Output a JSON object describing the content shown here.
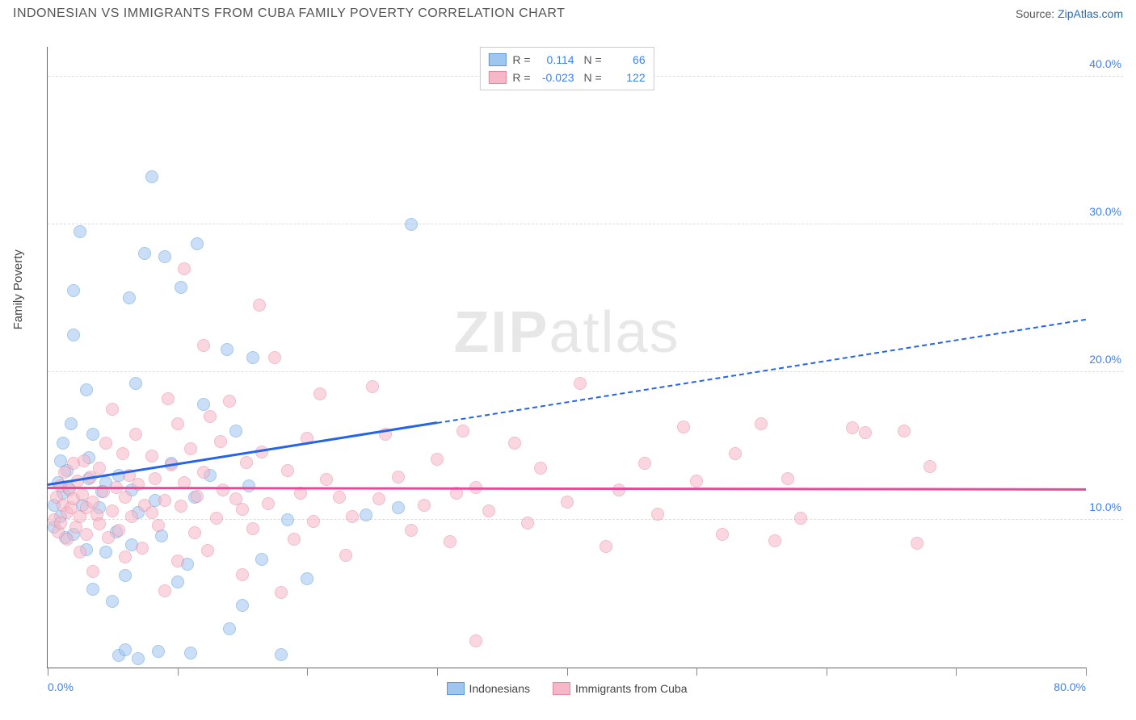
{
  "title": "INDONESIAN VS IMMIGRANTS FROM CUBA FAMILY POVERTY CORRELATION CHART",
  "source_label": "Source:",
  "source_name": "ZipAtlas.com",
  "watermark": {
    "bold": "ZIP",
    "rest": "atlas"
  },
  "chart": {
    "type": "scatter",
    "ylabel": "Family Poverty",
    "xlim": [
      0,
      80
    ],
    "ylim": [
      0,
      42
    ],
    "xtick_positions": [
      0,
      10,
      20,
      30,
      40,
      50,
      60,
      70,
      80
    ],
    "xtick_labels": {
      "0": "0.0%",
      "80": "80.0%"
    },
    "ytick_positions": [
      10,
      20,
      30,
      40
    ],
    "ytick_labels": {
      "10": "10.0%",
      "20": "20.0%",
      "30": "30.0%",
      "40": "40.0%"
    },
    "grid_color": "#dddddd",
    "axis_color": "#666666",
    "tick_label_color": "#3b82f6",
    "background_color": "#ffffff",
    "marker_radius": 7,
    "marker_opacity": 0.55,
    "series": [
      {
        "name": "Indonesians",
        "fill": "#9fc5f1",
        "stroke": "#5b9bd5",
        "line_color": "#2563eb",
        "r_value": "0.114",
        "n_value": "66",
        "trend": {
          "x1": 0,
          "y1": 12.3,
          "x2_solid": 30,
          "y2_solid": 16.5,
          "x2": 80,
          "y2": 23.5
        },
        "points": [
          [
            0.5,
            9.5
          ],
          [
            0.5,
            11
          ],
          [
            0.8,
            12.5
          ],
          [
            1,
            10.2
          ],
          [
            1,
            14
          ],
          [
            1.2,
            11.8
          ],
          [
            1.2,
            15.2
          ],
          [
            1.4,
            8.8
          ],
          [
            1.5,
            13.3
          ],
          [
            1.6,
            12.1
          ],
          [
            1.8,
            16.5
          ],
          [
            2,
            9
          ],
          [
            2,
            22.5
          ],
          [
            2,
            25.5
          ],
          [
            2.5,
            29.5
          ],
          [
            2.7,
            11
          ],
          [
            3,
            8
          ],
          [
            3,
            18.8
          ],
          [
            3.2,
            12.8
          ],
          [
            3.2,
            14.2
          ],
          [
            3.5,
            5.3
          ],
          [
            3.5,
            15.8
          ],
          [
            4,
            10.8
          ],
          [
            4.2,
            11.9
          ],
          [
            4.5,
            7.8
          ],
          [
            4.5,
            12.5
          ],
          [
            5,
            4.5
          ],
          [
            5.3,
            9.2
          ],
          [
            5.5,
            0.8
          ],
          [
            5.5,
            13
          ],
          [
            6,
            1.2
          ],
          [
            6,
            6.2
          ],
          [
            6.3,
            25
          ],
          [
            6.5,
            8.3
          ],
          [
            6.5,
            12
          ],
          [
            6.8,
            19.2
          ],
          [
            7,
            0.6
          ],
          [
            7,
            10.5
          ],
          [
            7.5,
            28
          ],
          [
            8,
            33.2
          ],
          [
            8.3,
            11.3
          ],
          [
            8.5,
            1.1
          ],
          [
            8.8,
            8.9
          ],
          [
            9,
            27.8
          ],
          [
            9.5,
            13.8
          ],
          [
            10,
            5.8
          ],
          [
            10.3,
            25.7
          ],
          [
            10.8,
            7
          ],
          [
            11,
            1
          ],
          [
            11.3,
            11.5
          ],
          [
            11.5,
            28.7
          ],
          [
            12,
            17.8
          ],
          [
            12.5,
            13
          ],
          [
            13.8,
            21.5
          ],
          [
            14,
            2.6
          ],
          [
            14.5,
            16
          ],
          [
            15,
            4.2
          ],
          [
            15.5,
            12.3
          ],
          [
            15.8,
            21
          ],
          [
            16.5,
            7.3
          ],
          [
            18,
            0.9
          ],
          [
            18.5,
            10
          ],
          [
            20,
            6
          ],
          [
            24.5,
            10.3
          ],
          [
            27,
            10.8
          ],
          [
            28,
            30
          ]
        ]
      },
      {
        "name": "Immigrants from Cuba",
        "fill": "#f6b8c8",
        "stroke": "#e8859f",
        "line_color": "#ec4899",
        "r_value": "-0.023",
        "n_value": "122",
        "trend": {
          "x1": 0,
          "y1": 12.1,
          "x2_solid": 80,
          "y2_solid": 12.0,
          "x2": 80,
          "y2": 12.0
        },
        "points": [
          [
            0.5,
            10
          ],
          [
            0.7,
            11.5
          ],
          [
            0.8,
            9.2
          ],
          [
            1,
            12.3
          ],
          [
            1,
            9.8
          ],
          [
            1.2,
            11
          ],
          [
            1.3,
            13.2
          ],
          [
            1.5,
            8.7
          ],
          [
            1.5,
            10.5
          ],
          [
            1.7,
            12
          ],
          [
            1.8,
            10.8
          ],
          [
            2,
            11.4
          ],
          [
            2,
            13.8
          ],
          [
            2.2,
            9.5
          ],
          [
            2.3,
            12.6
          ],
          [
            2.5,
            10.2
          ],
          [
            2.5,
            7.8
          ],
          [
            2.7,
            11.7
          ],
          [
            2.8,
            14
          ],
          [
            3,
            9
          ],
          [
            3,
            10.8
          ],
          [
            3.3,
            12.9
          ],
          [
            3.5,
            6.5
          ],
          [
            3.5,
            11.2
          ],
          [
            3.8,
            10.3
          ],
          [
            4,
            13.5
          ],
          [
            4,
            9.7
          ],
          [
            4.3,
            11.9
          ],
          [
            4.5,
            15.2
          ],
          [
            4.7,
            8.8
          ],
          [
            5,
            10.6
          ],
          [
            5,
            17.5
          ],
          [
            5.3,
            12.2
          ],
          [
            5.5,
            9.3
          ],
          [
            5.8,
            14.5
          ],
          [
            6,
            11.5
          ],
          [
            6,
            7.5
          ],
          [
            6.3,
            13
          ],
          [
            6.5,
            10.2
          ],
          [
            6.8,
            15.8
          ],
          [
            7,
            12.4
          ],
          [
            7.3,
            8.1
          ],
          [
            7.5,
            11
          ],
          [
            8,
            14.3
          ],
          [
            8,
            10.5
          ],
          [
            8.3,
            12.8
          ],
          [
            8.5,
            9.6
          ],
          [
            9,
            5.2
          ],
          [
            9,
            11.3
          ],
          [
            9.3,
            18.2
          ],
          [
            9.5,
            13.7
          ],
          [
            10,
            7.2
          ],
          [
            10,
            16.5
          ],
          [
            10.3,
            10.9
          ],
          [
            10.5,
            27
          ],
          [
            10.5,
            12.5
          ],
          [
            11,
            14.8
          ],
          [
            11.3,
            9.1
          ],
          [
            11.5,
            11.6
          ],
          [
            12,
            21.8
          ],
          [
            12,
            13.2
          ],
          [
            12.3,
            7.9
          ],
          [
            12.5,
            17
          ],
          [
            13,
            10.1
          ],
          [
            13.3,
            15.3
          ],
          [
            13.5,
            12
          ],
          [
            14,
            18
          ],
          [
            14.5,
            11.4
          ],
          [
            15,
            6.3
          ],
          [
            15,
            10.7
          ],
          [
            15.3,
            13.9
          ],
          [
            15.8,
            9.4
          ],
          [
            16.3,
            24.5
          ],
          [
            16.5,
            14.6
          ],
          [
            17,
            11.1
          ],
          [
            17.5,
            21
          ],
          [
            18,
            5.1
          ],
          [
            18.5,
            13.3
          ],
          [
            19,
            8.7
          ],
          [
            19.5,
            11.8
          ],
          [
            20,
            15.5
          ],
          [
            20.5,
            9.9
          ],
          [
            21,
            18.5
          ],
          [
            21.5,
            12.7
          ],
          [
            22.5,
            11.5
          ],
          [
            23,
            7.6
          ],
          [
            23.5,
            10.2
          ],
          [
            25,
            19
          ],
          [
            25.5,
            11.4
          ],
          [
            26,
            15.8
          ],
          [
            27,
            12.9
          ],
          [
            28,
            9.3
          ],
          [
            29,
            11
          ],
          [
            30,
            14.1
          ],
          [
            31,
            8.5
          ],
          [
            31.5,
            11.8
          ],
          [
            32,
            16
          ],
          [
            33,
            12.2
          ],
          [
            33,
            1.8
          ],
          [
            34,
            10.6
          ],
          [
            36,
            15.2
          ],
          [
            37,
            9.8
          ],
          [
            38,
            13.5
          ],
          [
            40,
            11.2
          ],
          [
            41,
            19.2
          ],
          [
            43,
            8.2
          ],
          [
            44,
            12
          ],
          [
            46,
            13.8
          ],
          [
            47,
            10.4
          ],
          [
            49,
            16.3
          ],
          [
            50,
            12.6
          ],
          [
            52,
            9
          ],
          [
            53,
            14.5
          ],
          [
            55,
            16.5
          ],
          [
            56,
            8.6
          ],
          [
            57,
            12.8
          ],
          [
            58,
            10.1
          ],
          [
            62,
            16.2
          ],
          [
            63,
            15.9
          ],
          [
            66,
            16
          ],
          [
            67,
            8.4
          ],
          [
            68,
            13.6
          ]
        ]
      }
    ],
    "bottom_legend": [
      {
        "label": "Indonesians",
        "fill": "#9fc5f1",
        "stroke": "#5b9bd5"
      },
      {
        "label": "Immigrants from Cuba",
        "fill": "#f6b8c8",
        "stroke": "#e8859f"
      }
    ]
  }
}
